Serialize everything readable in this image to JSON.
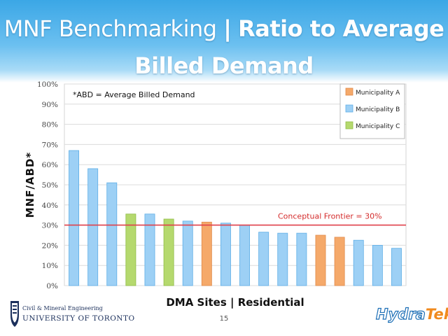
{
  "title": {
    "line1_regular": "MNF Benchmarking",
    "line1_sep": "|",
    "line1_bold": "Ratio to Average",
    "line2_bold": "Billed Demand"
  },
  "colors": {
    "municipality_a": "#f5a96a",
    "municipality_b": "#9dd0f5",
    "municipality_c": "#b5d96e",
    "frontier_line": "#e0404a",
    "frontier_text": "#d42c2c"
  },
  "chart_data": {
    "type": "bar",
    "ylabel": "MNF/ABD*",
    "xlabel": "DMA Sites | Residential",
    "annotation_note": "*ABD = Average Billed Demand",
    "ylim": [
      0,
      100
    ],
    "y_ticks": [
      "0%",
      "10%",
      "20%",
      "30%",
      "40%",
      "50%",
      "60%",
      "70%",
      "80%",
      "90%",
      "100%"
    ],
    "y_tick_values": [
      0,
      10,
      20,
      30,
      40,
      50,
      60,
      70,
      80,
      90,
      100
    ],
    "grid": true,
    "legend_position": "top-right",
    "legend": [
      {
        "name": "Municipality A",
        "key": "A"
      },
      {
        "name": "Municipality B",
        "key": "B"
      },
      {
        "name": "Municipality C",
        "key": "C"
      }
    ],
    "bars": [
      {
        "value": 67,
        "group": "B"
      },
      {
        "value": 58,
        "group": "B"
      },
      {
        "value": 51,
        "group": "B"
      },
      {
        "value": 35.5,
        "group": "C"
      },
      {
        "value": 35.5,
        "group": "B"
      },
      {
        "value": 33,
        "group": "C"
      },
      {
        "value": 32,
        "group": "B"
      },
      {
        "value": 31.5,
        "group": "A"
      },
      {
        "value": 31,
        "group": "B"
      },
      {
        "value": 30,
        "group": "B"
      },
      {
        "value": 26.5,
        "group": "B"
      },
      {
        "value": 26,
        "group": "B"
      },
      {
        "value": 26,
        "group": "B"
      },
      {
        "value": 25,
        "group": "A"
      },
      {
        "value": 24,
        "group": "A"
      },
      {
        "value": 22.5,
        "group": "B"
      },
      {
        "value": 20,
        "group": "B"
      },
      {
        "value": 18.5,
        "group": "B"
      }
    ],
    "reference_line": {
      "value": 30,
      "label": "Conceptual Frontier = 30%"
    }
  },
  "footer": {
    "dept": "Civil & Mineral Engineering",
    "university": "UNIVERSITY OF TORONTO",
    "page_number": "15",
    "logo_part1": "Hydra",
    "logo_part2": "Tek"
  }
}
